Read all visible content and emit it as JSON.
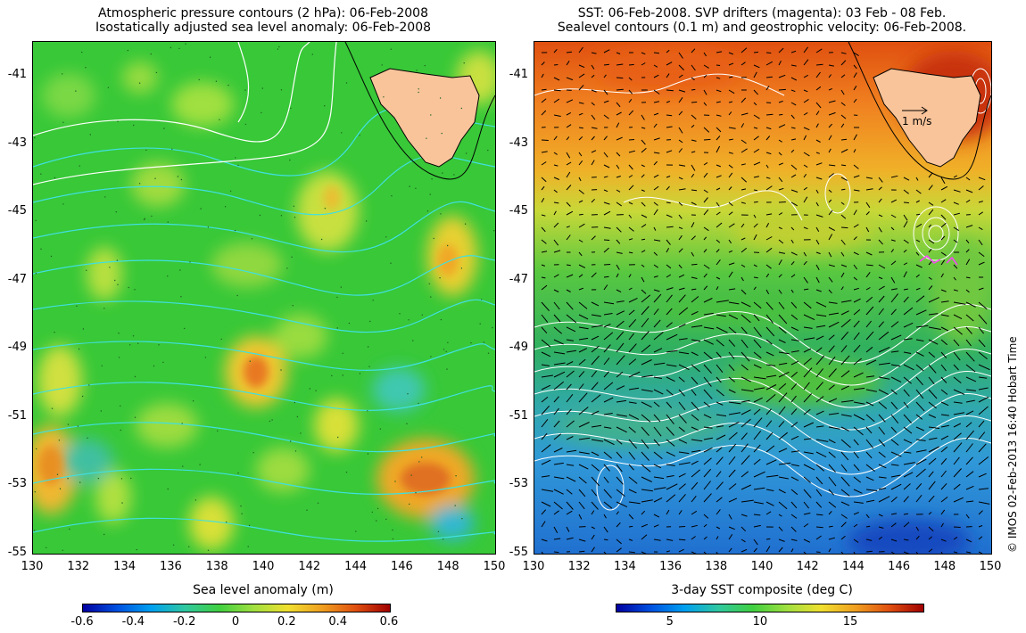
{
  "left_panel": {
    "title_line1": "Atmospheric pressure contours (2 hPa): 06-Feb-2008",
    "title_line2": "Isostatically adjusted sea level anomaly: 06-Feb-2008",
    "colorbar": {
      "label": "Sea level anomaly (m)",
      "ticks": [
        "-0.6",
        "-0.4",
        "-0.2",
        "0",
        "0.2",
        "0.4",
        "0.6"
      ],
      "range": [
        -0.6,
        0.6
      ]
    }
  },
  "right_panel": {
    "title_line1": "SST: 06-Feb-2008. SVP drifters (magenta): 03 Feb - 08 Feb.",
    "title_line2": "Sealevel contours (0.1 m) and geostrophic velocity: 06-Feb-2008.",
    "velocity_scale_label": "1 m/s",
    "colorbar": {
      "label": "3-day SST composite (deg C)",
      "ticks": [
        "5",
        "10",
        "15"
      ],
      "range": [
        2,
        19
      ]
    }
  },
  "axes": {
    "x_ticks": [
      "130",
      "132",
      "134",
      "136",
      "138",
      "140",
      "142",
      "144",
      "146",
      "148",
      "150"
    ],
    "y_ticks": [
      "-41",
      "-43",
      "-45",
      "-47",
      "-49",
      "-51",
      "-53",
      "-55"
    ],
    "lon_range": [
      130,
      150
    ],
    "lat_range": [
      -55,
      -40
    ]
  },
  "credit": "© IMOS 02-Feb-2013 16:40 Hobart Time",
  "colors": {
    "land": "#f9c49a",
    "contour_cyan": "#40e0e0",
    "contour_white": "#ffffff",
    "arrow": "#000000"
  }
}
